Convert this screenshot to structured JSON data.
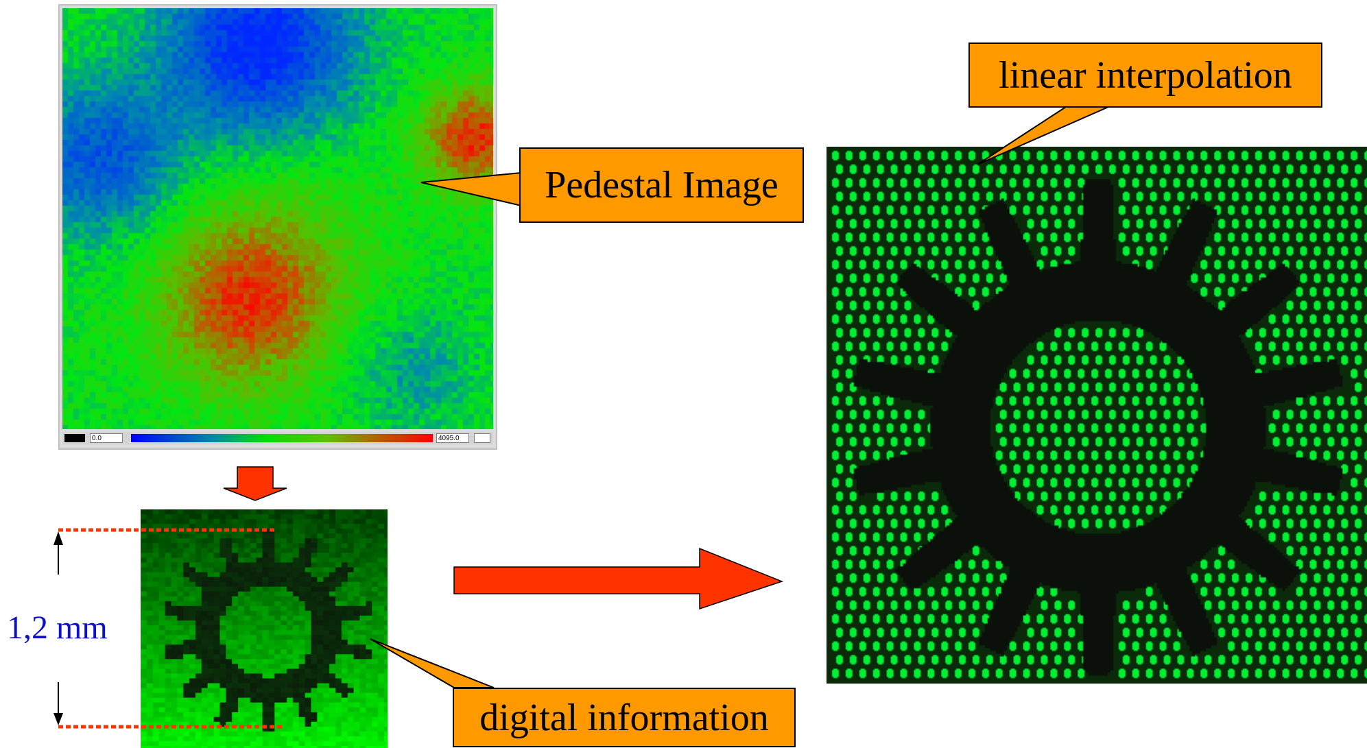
{
  "colorbar": {
    "min_label": "0.0",
    "max_label": "4095.0"
  },
  "callouts": {
    "pedestal": "Pedestal Image",
    "linear": "linear interpolation",
    "digital": "digital information"
  },
  "dimension": {
    "label": "1,2 mm"
  },
  "colors": {
    "callout_fill": "#ff9900",
    "arrow_red": "#ff3300",
    "dim_line": "#ff3300",
    "dim_text": "#1010cc",
    "pixel_green": "#00ff33"
  }
}
